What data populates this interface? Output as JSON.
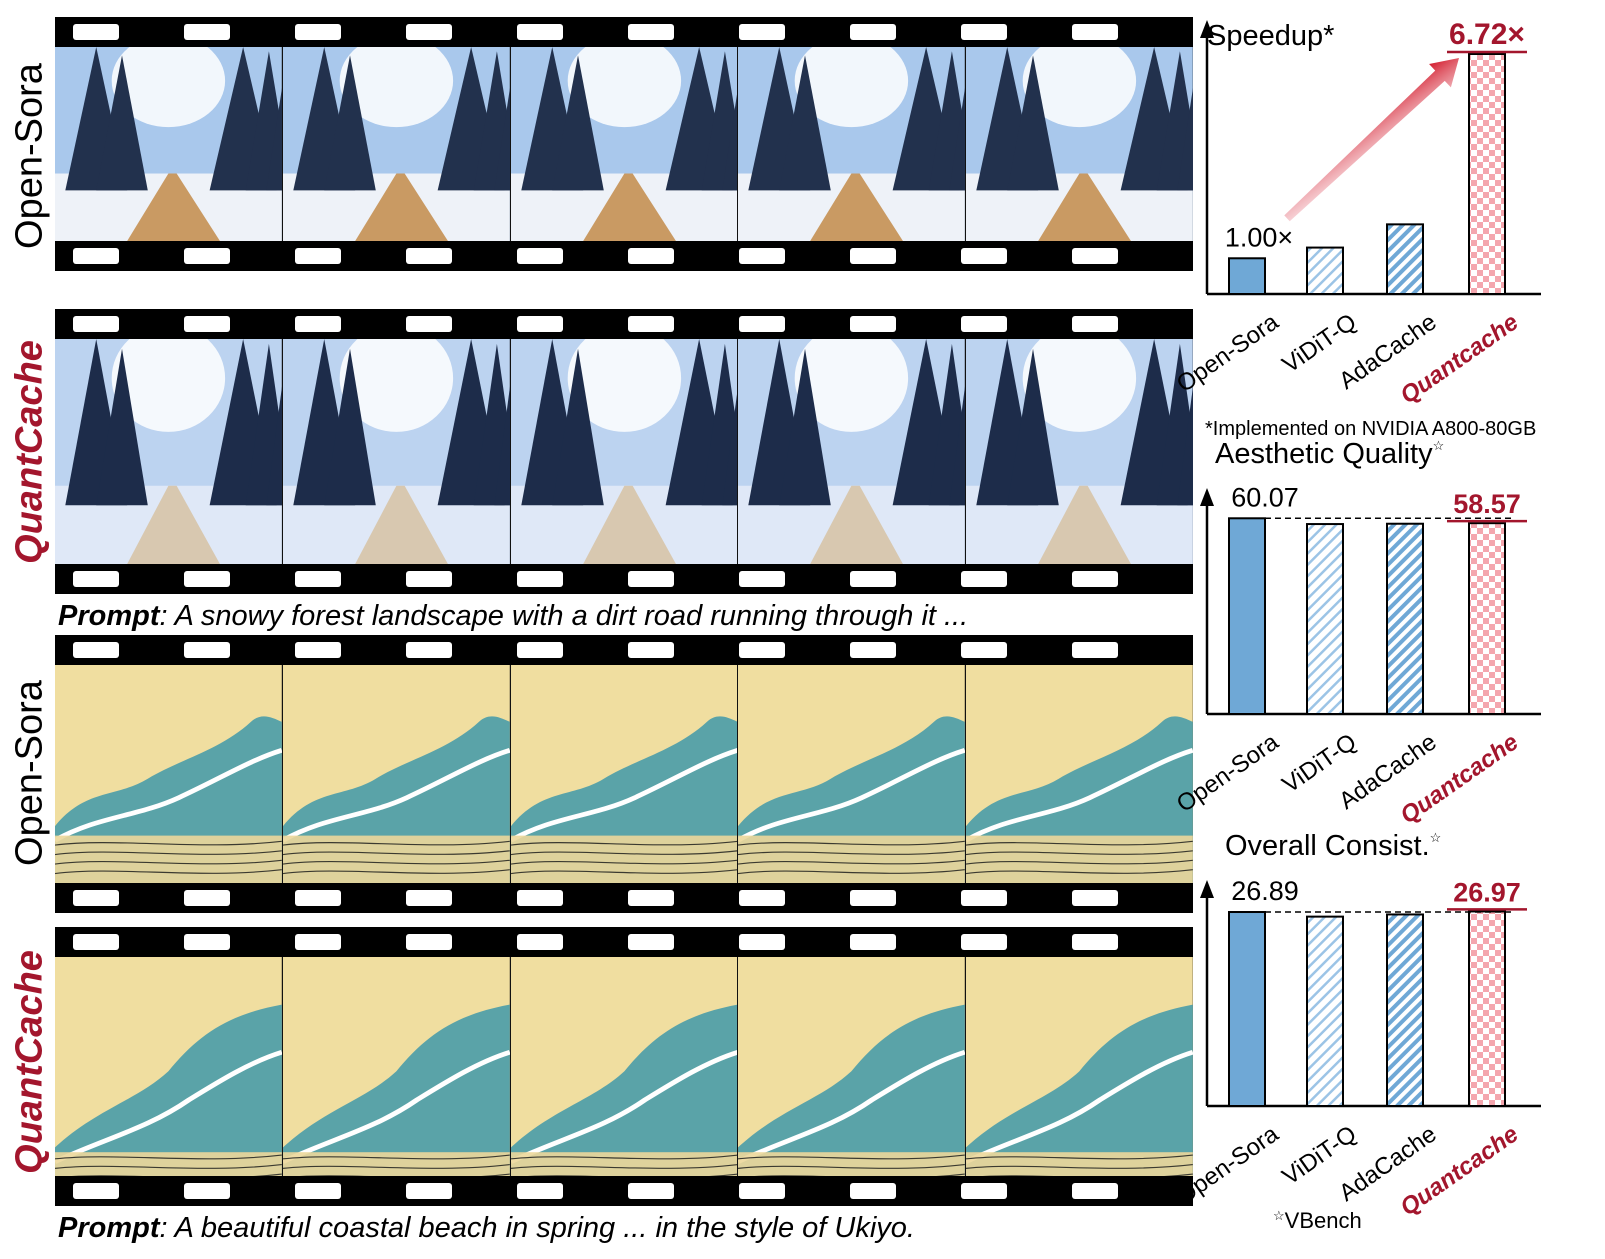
{
  "rows": [
    {
      "label": "Open-Sora",
      "style": "baseline",
      "scene": "snow"
    },
    {
      "label": "QuantCache",
      "style": "ours",
      "scene": "snow"
    },
    {
      "label": "Open-Sora",
      "style": "baseline",
      "scene": "wave"
    },
    {
      "label": "QuantCache",
      "style": "ours",
      "scene": "wave"
    }
  ],
  "prompts": [
    {
      "prefix": "Prompt",
      "text": ": A snowy forest landscape with a dirt road running through it ..."
    },
    {
      "prefix": "Prompt",
      "text": ": A beautiful coastal beach in spring ... in the style of Ukiyo."
    }
  ],
  "footnote": "*Implemented on NVIDIA A800-80GB",
  "vbench_note": "VBench",
  "colors": {
    "accent": "#a3162d",
    "bar_blue": "#6fa8d6",
    "bar_light_blue": "#9cc4e6",
    "bar_pink": "#f4a6ae"
  },
  "chart_data": [
    {
      "type": "bar",
      "title": "Speedup*",
      "categories": [
        "Open-Sora",
        "ViDiT-Q",
        "AdaCache",
        "Quantcache"
      ],
      "values": [
        1.0,
        1.3,
        1.95,
        6.72
      ],
      "ylim": [
        0,
        7
      ],
      "data_labels": [
        "1.00×",
        "",
        "",
        "6.72×"
      ],
      "annotation": "trend arrow from Open-Sora to Quantcache"
    },
    {
      "type": "bar",
      "title": "Aesthetic Quality",
      "categories": [
        "Open-Sora",
        "ViDiT-Q",
        "AdaCache",
        "Quantcache"
      ],
      "values": [
        60.07,
        58.3,
        58.4,
        58.57
      ],
      "ylim": [
        0,
        62
      ],
      "data_labels": [
        "60.07",
        "",
        "",
        "58.57"
      ],
      "reference_line": 60.07
    },
    {
      "type": "bar",
      "title": "Overall Consist.",
      "categories": [
        "Open-Sora",
        "ViDiT-Q",
        "AdaCache",
        "Quantcache"
      ],
      "values": [
        26.89,
        26.25,
        26.55,
        26.97
      ],
      "ylim": [
        0,
        28
      ],
      "data_labels": [
        "26.89",
        "",
        "",
        "26.97"
      ],
      "reference_line": 26.89
    }
  ]
}
